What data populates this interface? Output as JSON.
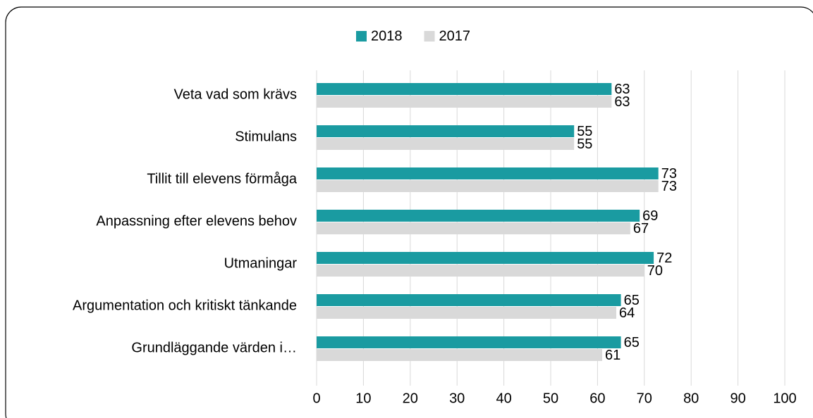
{
  "chart_data": {
    "type": "bar",
    "orientation": "horizontal",
    "categories": [
      "Veta vad som krävs",
      "Stimulans",
      "Tillit till elevens förmåga",
      "Anpassning efter elevens behov",
      "Utmaningar",
      "Argumentation och kritiskt tänkande",
      "Grundläggande värden i…"
    ],
    "series": [
      {
        "name": "2018",
        "color": "#1a9ba1",
        "values": [
          63,
          55,
          73,
          69,
          72,
          65,
          65
        ]
      },
      {
        "name": "2017",
        "color": "#d9d9d9",
        "values": [
          63,
          55,
          73,
          67,
          70,
          64,
          61
        ]
      }
    ],
    "xlim": [
      0,
      100
    ],
    "xticks": [
      0,
      10,
      20,
      30,
      40,
      50,
      60,
      70,
      80,
      90,
      100
    ],
    "grid": true,
    "legend": "top"
  }
}
